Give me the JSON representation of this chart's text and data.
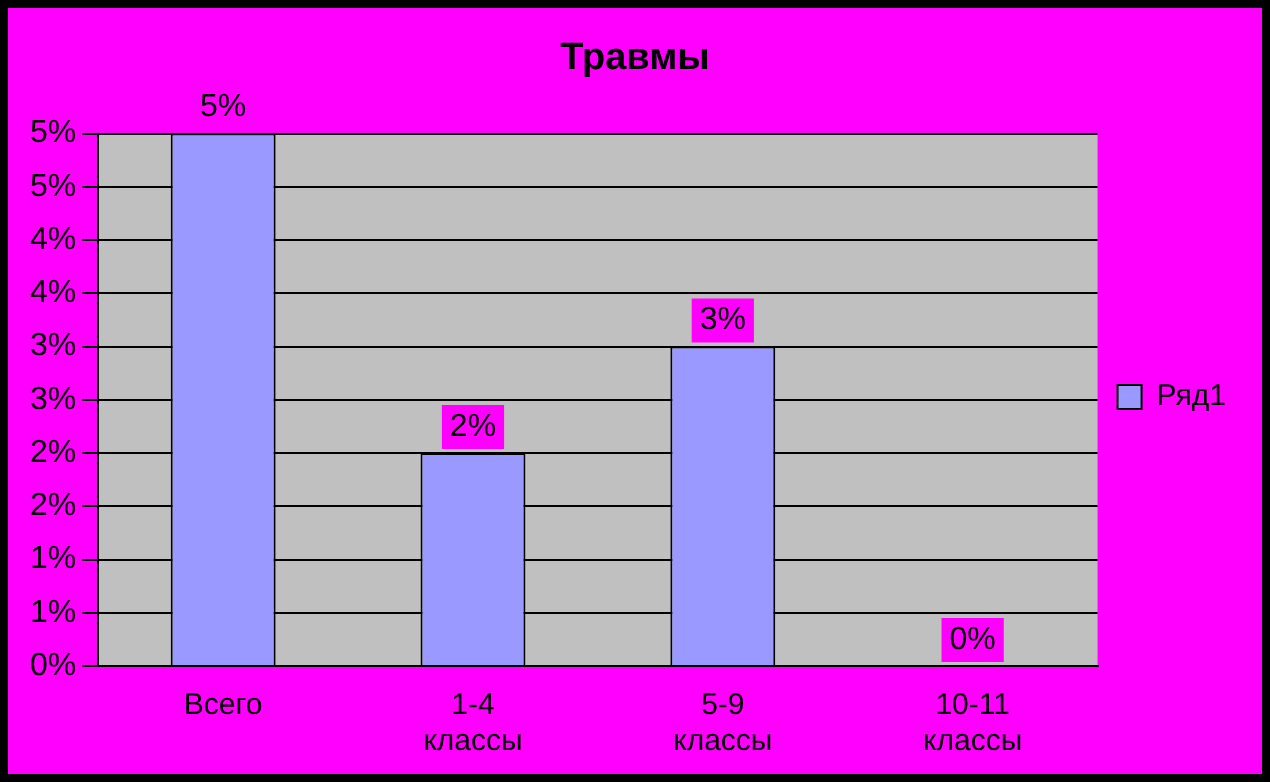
{
  "chart_data": {
    "type": "bar",
    "title": "Травмы",
    "categories": [
      "Всего",
      "1-4 классы",
      "5-9 классы",
      "10-11 классы"
    ],
    "series": [
      {
        "name": "Ряд1",
        "color": "#9999ff",
        "values": [
          5,
          2,
          3,
          0
        ],
        "value_labels": [
          "5%",
          "2%",
          "3%",
          "0%"
        ]
      }
    ],
    "ylim": [
      0,
      5
    ],
    "yticks": [
      {
        "value": 0,
        "label": "0%"
      },
      {
        "value": 0.5,
        "label": "1%"
      },
      {
        "value": 1,
        "label": "1%"
      },
      {
        "value": 1.5,
        "label": "2%"
      },
      {
        "value": 2,
        "label": "2%"
      },
      {
        "value": 2.5,
        "label": "3%"
      },
      {
        "value": 3,
        "label": "3%"
      },
      {
        "value": 3.5,
        "label": "4%"
      },
      {
        "value": 4,
        "label": "4%"
      },
      {
        "value": 4.5,
        "label": "5%"
      },
      {
        "value": 5,
        "label": "5%"
      }
    ],
    "grid": "y",
    "legend": "right"
  }
}
